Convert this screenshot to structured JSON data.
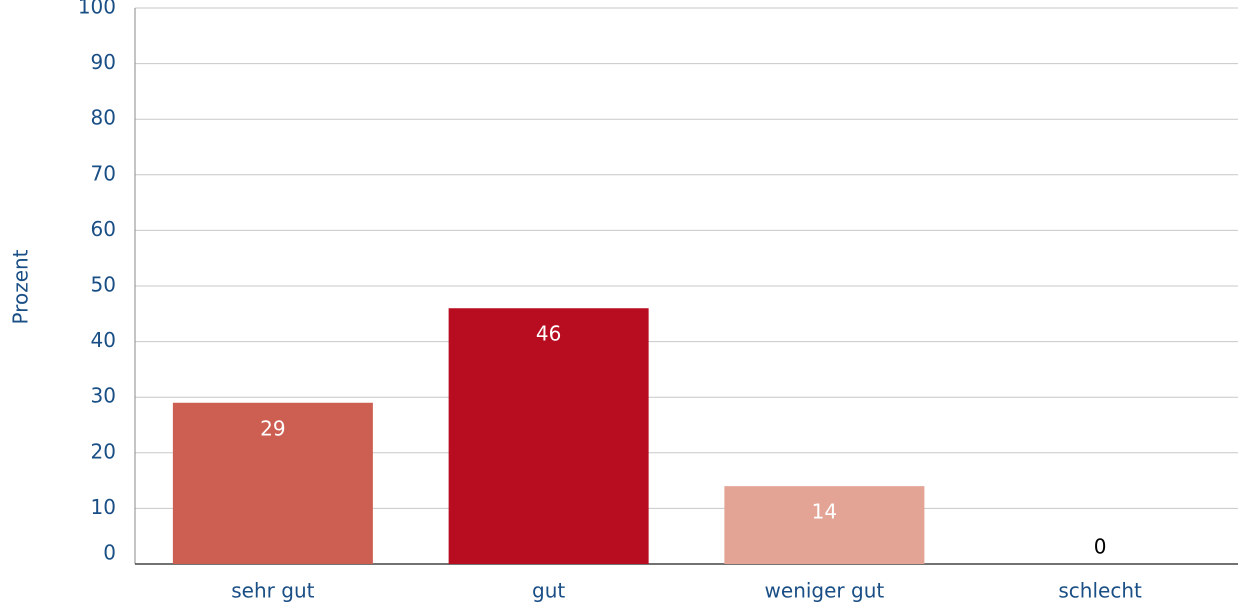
{
  "chart_data": {
    "type": "bar",
    "y_label": "Prozent",
    "categories": [
      "sehr gut",
      "gut",
      "weniger gut",
      "schlecht"
    ],
    "values": [
      29,
      46,
      14,
      0
    ],
    "colors": [
      "#cd5f52",
      "#b80c20",
      "#e3a495",
      "#cd5f52"
    ],
    "ylim": [
      0,
      100
    ],
    "yticks": [
      0,
      10,
      20,
      30,
      40,
      50,
      60,
      70,
      80,
      90,
      100
    ],
    "grid": true
  }
}
